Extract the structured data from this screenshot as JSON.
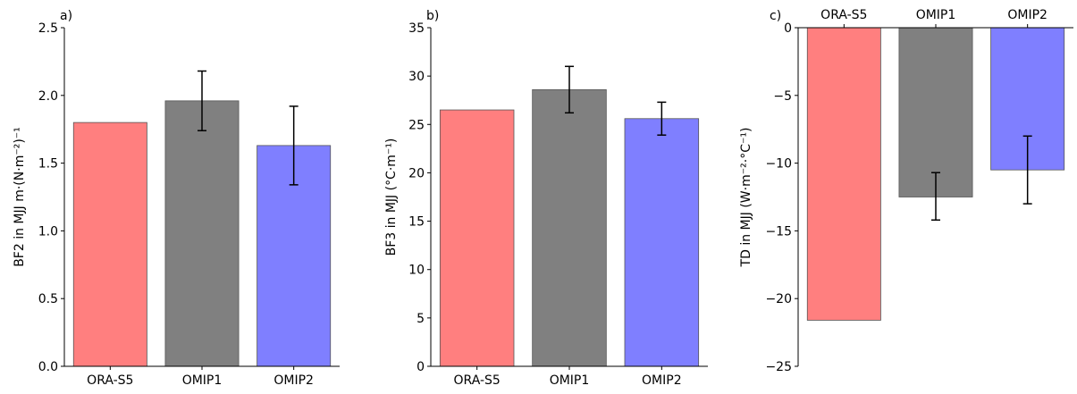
{
  "chart_data": [
    {
      "type": "bar",
      "panel_label": "a)",
      "title": "",
      "xlabel": "",
      "ylabel": "BF2 in MJJ m·(N·m⁻²)⁻¹",
      "categories": [
        "ORA-S5",
        "OMIP1",
        "OMIP2"
      ],
      "values": [
        1.8,
        1.96,
        1.63
      ],
      "error_low": [
        null,
        1.74,
        1.34
      ],
      "error_high": [
        null,
        2.18,
        1.92
      ],
      "colors": [
        "#ff7f7f",
        "#808080",
        "#7f7fff"
      ],
      "ylim": [
        0,
        2.5
      ],
      "yticks": [
        0.0,
        0.5,
        1.0,
        1.5,
        2.0,
        2.5
      ],
      "ytick_labels": [
        "0.0",
        "0.5",
        "1.0",
        "1.5",
        "2.0",
        "2.5"
      ],
      "grid": false,
      "xaxis_position": "bottom"
    },
    {
      "type": "bar",
      "panel_label": "b)",
      "title": "",
      "xlabel": "",
      "ylabel": "BF3 in MJJ (°C·m⁻¹)",
      "categories": [
        "ORA-S5",
        "OMIP1",
        "OMIP2"
      ],
      "values": [
        26.5,
        28.6,
        25.6
      ],
      "error_low": [
        null,
        26.2,
        23.9
      ],
      "error_high": [
        null,
        31.0,
        27.3
      ],
      "colors": [
        "#ff7f7f",
        "#808080",
        "#7f7fff"
      ],
      "ylim": [
        0,
        35
      ],
      "yticks": [
        0,
        5,
        10,
        15,
        20,
        25,
        30,
        35
      ],
      "ytick_labels": [
        "0",
        "5",
        "10",
        "15",
        "20",
        "25",
        "30",
        "35"
      ],
      "grid": false,
      "xaxis_position": "bottom"
    },
    {
      "type": "bar",
      "panel_label": "c)",
      "title": "",
      "xlabel": "",
      "ylabel": "TD in MJJ (W·m⁻²·°C⁻¹)",
      "categories": [
        "ORA-S5",
        "OMIP1",
        "OMIP2"
      ],
      "values": [
        -21.6,
        -12.5,
        -10.5
      ],
      "error_low": [
        null,
        -14.2,
        -13.0
      ],
      "error_high": [
        null,
        -10.7,
        -8.0
      ],
      "colors": [
        "#ff7f7f",
        "#808080",
        "#7f7fff"
      ],
      "ylim": [
        -25,
        0
      ],
      "yticks": [
        0,
        -5,
        -10,
        -15,
        -20,
        -25
      ],
      "ytick_labels": [
        "0",
        "−5",
        "−10",
        "−15",
        "−20",
        "−25"
      ],
      "grid": false,
      "xaxis_position": "top"
    }
  ]
}
